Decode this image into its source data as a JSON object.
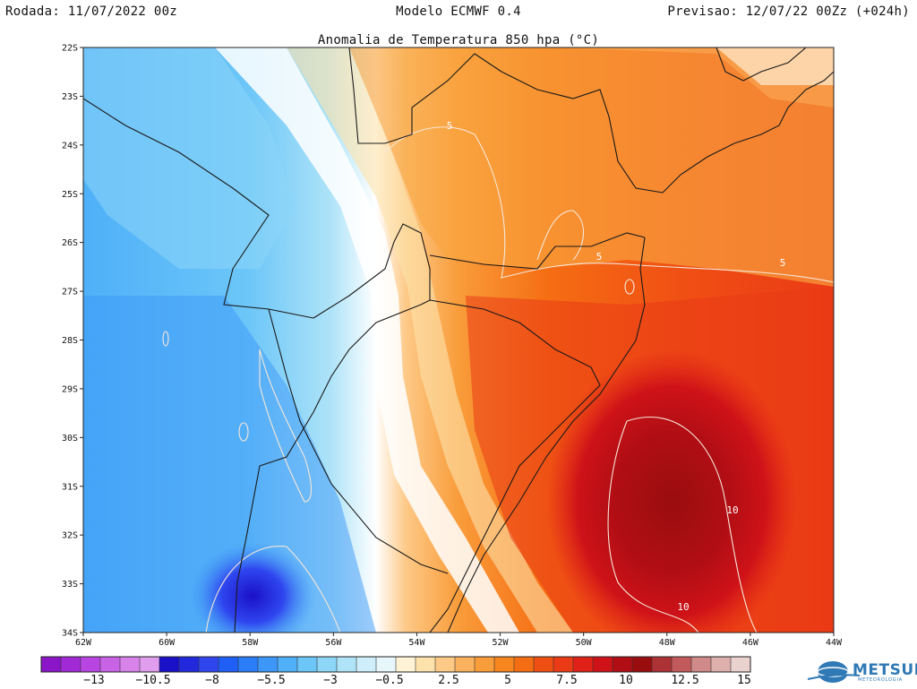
{
  "header": {
    "run": "Rodada: 11/07/2022 00z",
    "model": "Modelo ECMWF 0.4",
    "forecast": "Previsao: 12/07/22 00Zz (+024h)"
  },
  "map": {
    "title": "Anomalia de Temperatura 850 hpa (°C)",
    "lat_labels": [
      "22S",
      "23S",
      "24S",
      "25S",
      "26S",
      "27S",
      "28S",
      "29S",
      "30S",
      "31S",
      "32S",
      "33S",
      "34S"
    ],
    "lon_labels": [
      "62W",
      "60W",
      "58W",
      "56W",
      "54W",
      "52W",
      "50W",
      "48W",
      "46W",
      "44W"
    ],
    "contour_labels": [
      "5",
      "5",
      "5",
      "10",
      "10"
    ]
  },
  "colorbar": {
    "labels": [
      "−13",
      "−10.5",
      "−8",
      "−5.5",
      "−3",
      "−0.5",
      "2.5",
      "5",
      "7.5",
      "10",
      "12.5",
      "15"
    ],
    "colors": [
      "#8a16c7",
      "#a12ad6",
      "#b845e1",
      "#c963e6",
      "#d783ea",
      "#e09ced",
      "#1a10c8",
      "#2229dd",
      "#2f46ef",
      "#1f5ff5",
      "#2a7df7",
      "#3c97f8",
      "#4fb0f8",
      "#6cc6f8",
      "#8dd6f8",
      "#aee3f8",
      "#cdeefa",
      "#e8f7fc",
      "#fff3d6",
      "#fee2ab",
      "#fdc987",
      "#fbb25e",
      "#f99c3a",
      "#f7861f",
      "#f56d13",
      "#f04f14",
      "#ea3a16",
      "#e02118",
      "#ce1218",
      "#b00e14",
      "#9a0d0f",
      "#ac3236",
      "#c25a5c",
      "#d08a8a",
      "#ddb0ae",
      "#ead2cf"
    ]
  },
  "branding": {
    "logo_text": "METSUL",
    "logo_subtext": "METEOROLOGIA"
  }
}
